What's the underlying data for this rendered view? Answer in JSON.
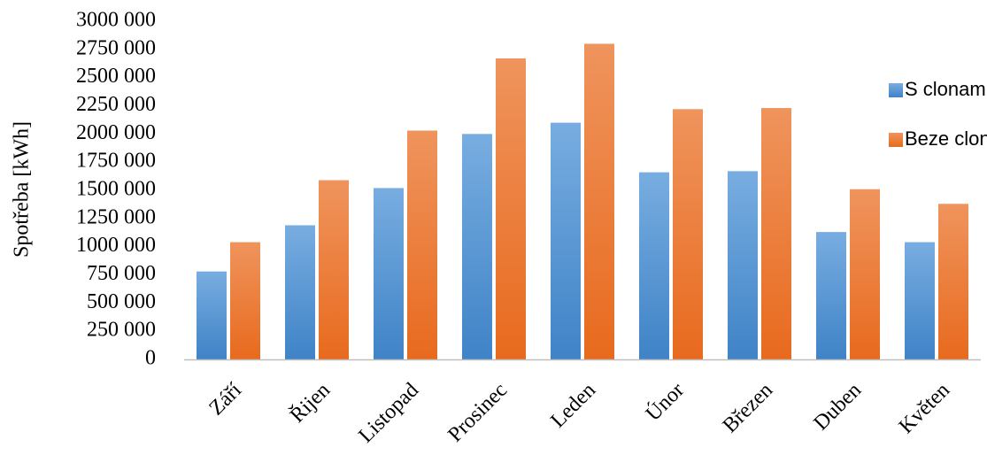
{
  "chart_data": {
    "type": "bar",
    "title": "",
    "xlabel": "",
    "ylabel": "Spotřeba [kWh]",
    "ylim": [
      0,
      3000000
    ],
    "ytick_values": [
      0,
      250000,
      500000,
      750000,
      1000000,
      1250000,
      1500000,
      1750000,
      2000000,
      2250000,
      2500000,
      2750000,
      3000000
    ],
    "ytick_labels": [
      "0",
      "250 000",
      "500 000",
      "750 000",
      "1000 000",
      "1250 000",
      "1500 000",
      "1750 000",
      "2000 000",
      "2250 000",
      "2500 000",
      "2750 000",
      "3000 000"
    ],
    "categories": [
      "Září",
      "Řijen",
      "Listopad",
      "Prosinec",
      "Leden",
      "Únor",
      "Březen",
      "Duben",
      "Květen"
    ],
    "series": [
      {
        "name": "S clonami",
        "color": "#5B9BD5",
        "values": [
          780000,
          1190000,
          1520000,
          2000000,
          2100000,
          1660000,
          1670000,
          1130000,
          1040000
        ]
      },
      {
        "name": "Beze clon",
        "color": "#ED7D31",
        "values": [
          1040000,
          1590000,
          2030000,
          2670000,
          2800000,
          2220000,
          2230000,
          1510000,
          1380000
        ]
      }
    ],
    "grid": false,
    "legend_position": "right"
  }
}
